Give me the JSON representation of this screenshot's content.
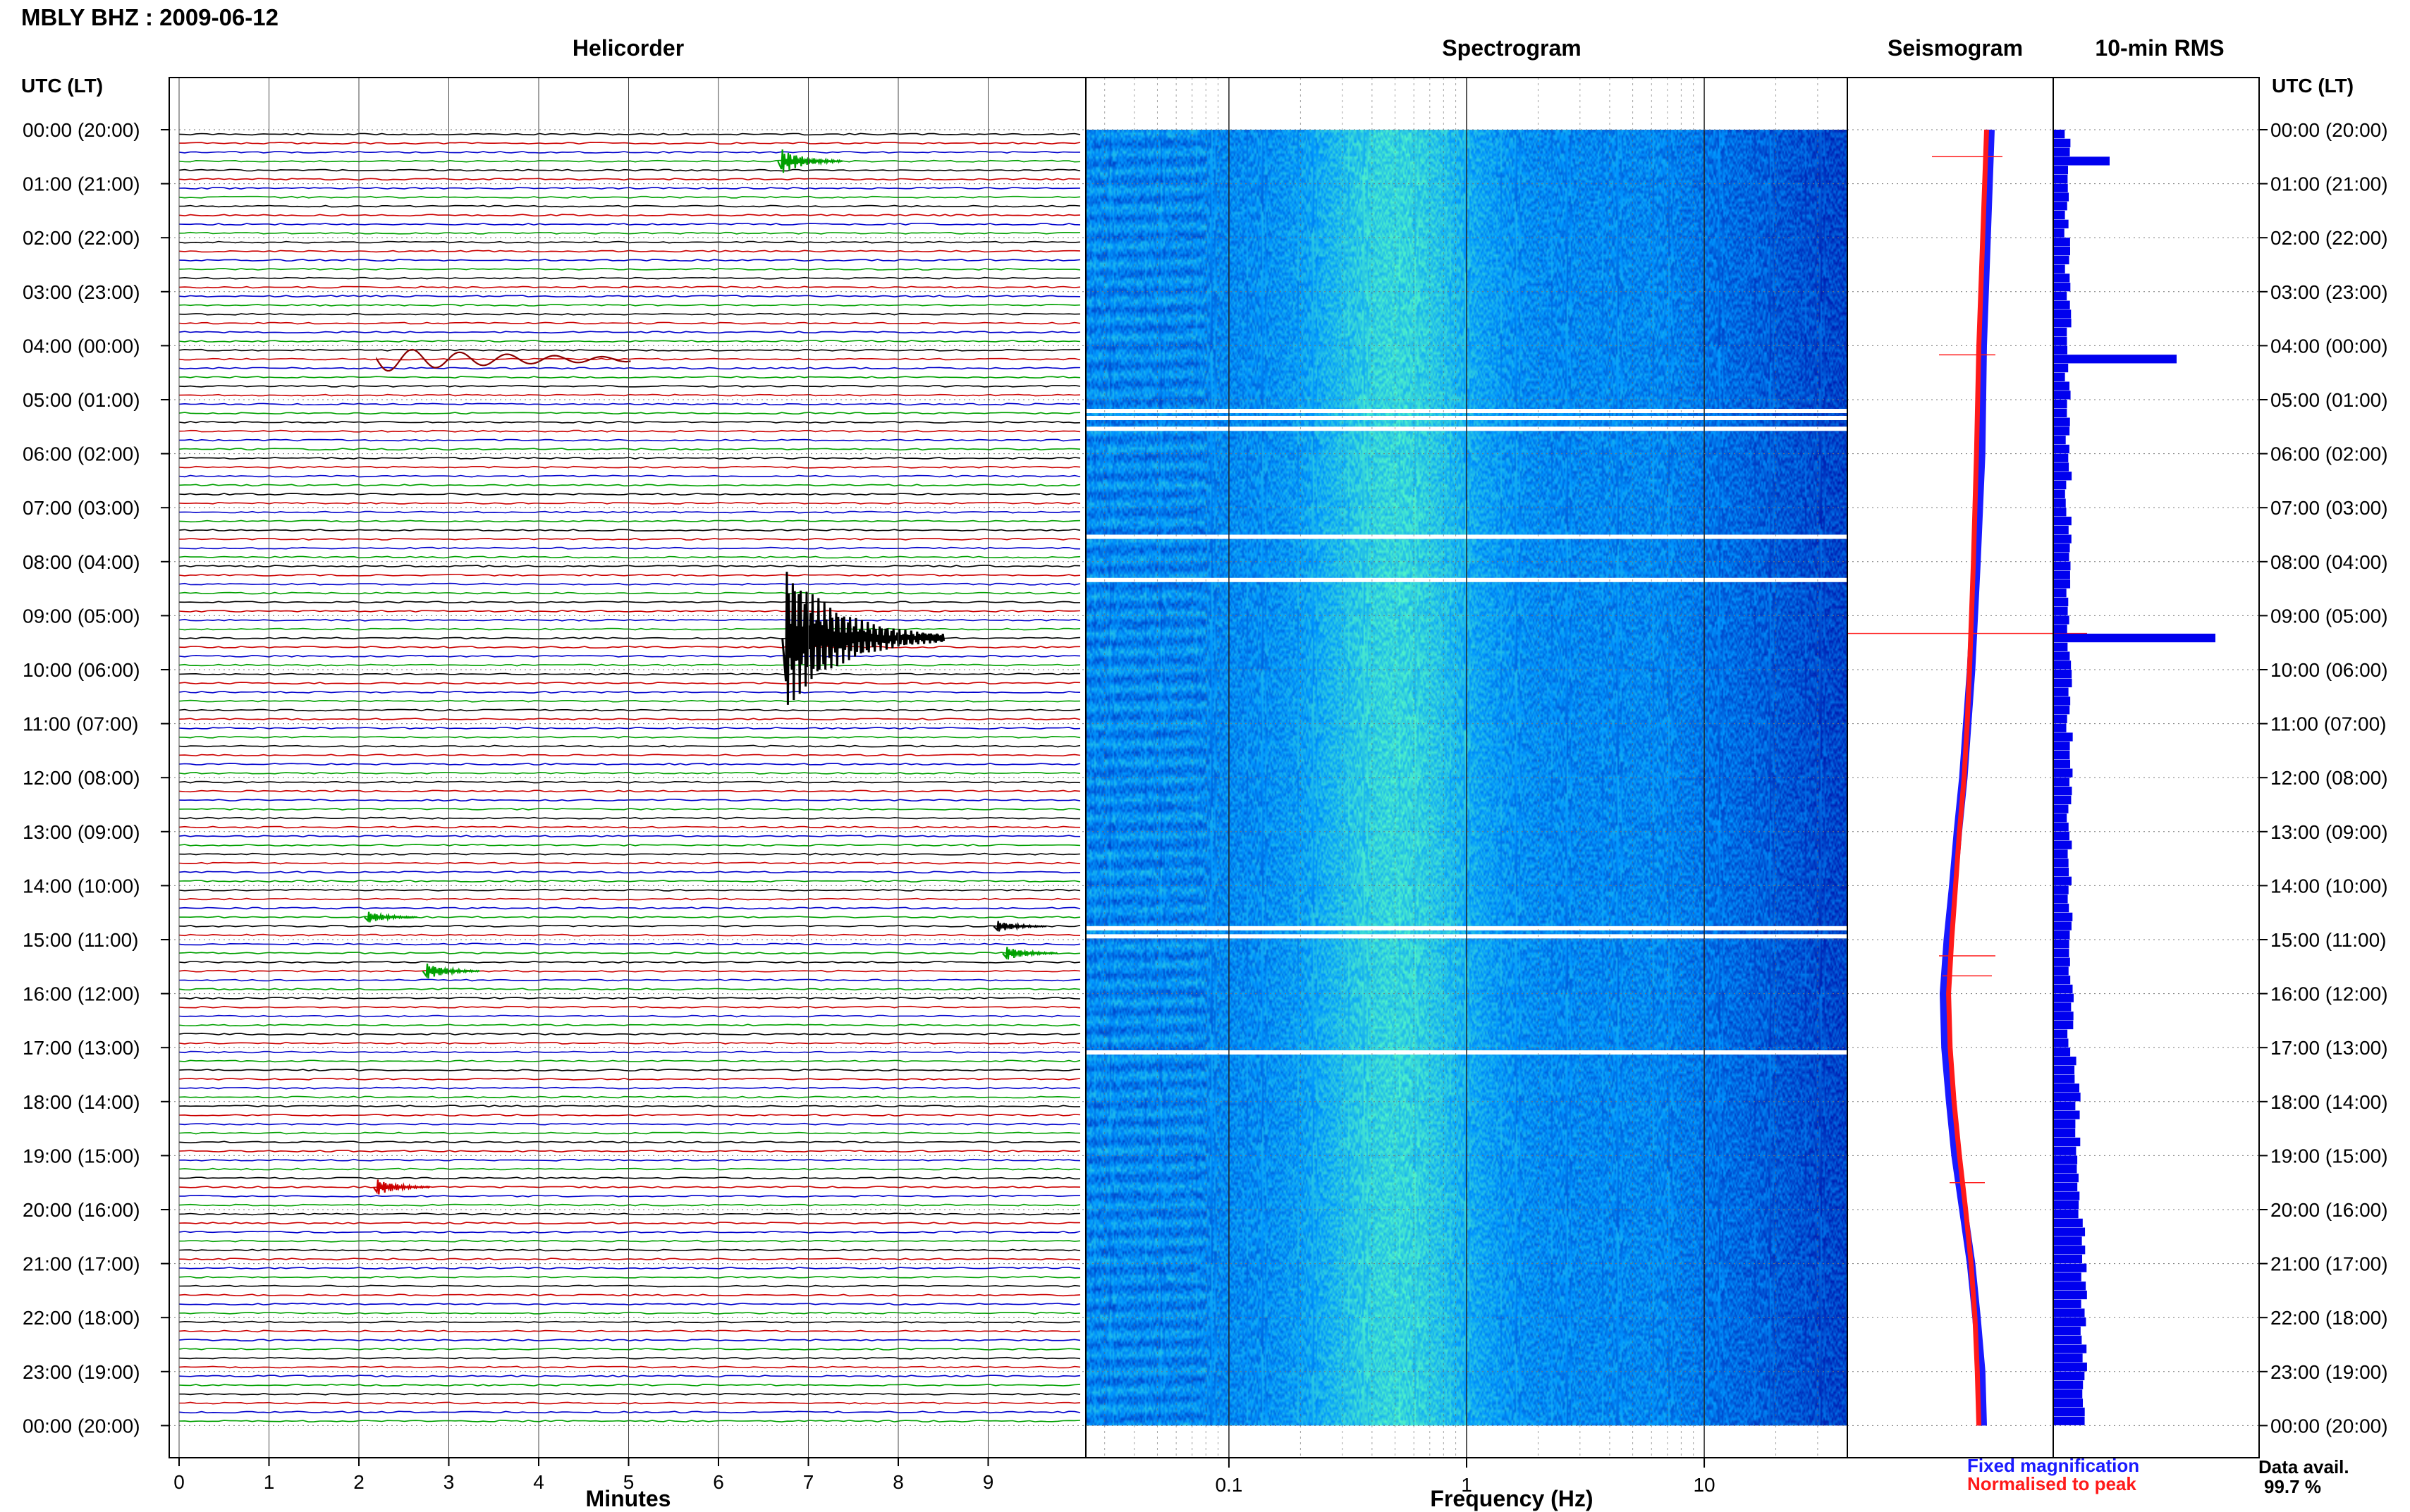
{
  "station": {
    "title": "MBLY BHZ : 2009-06-12"
  },
  "colors": {
    "trace_cycle": [
      "#000000",
      "#cc0000",
      "#0000cc",
      "#00a000"
    ],
    "event_trace_dark_red": "#880000",
    "spectrogram_low": "#0000aa",
    "spectrogram_mid": "#0099ff",
    "spectrogram_high": "#44ffcc",
    "fixed_magnification": "#1a1aff",
    "normalised_to_peak": "#ff1a1a",
    "rms_bar": "#0000ee"
  },
  "panels": {
    "helicorder": {
      "title": "Helicorder"
    },
    "spectrogram": {
      "title": "Spectrogram"
    },
    "seismogram": {
      "title": "Seismogram"
    },
    "rms": {
      "title": "10-min RMS"
    }
  },
  "legend": {
    "fixed": "Fixed magnification",
    "normalised": "Normalised to peak"
  },
  "data_avail": {
    "label": "Data avail.",
    "value": "99.7 %"
  },
  "chart_data": [
    {
      "type": "line",
      "title": "Helicorder",
      "xlabel": "Minutes",
      "ylabel": "UTC (LT)",
      "xlim": [
        0,
        10
      ],
      "x_ticks": [
        "0",
        "1",
        "2",
        "3",
        "4",
        "5",
        "6",
        "7",
        "8",
        "9"
      ],
      "y_ticks": [
        "00:00 (20:00)",
        "01:00 (21:00)",
        "02:00 (22:00)",
        "03:00 (23:00)",
        "04:00 (00:00)",
        "05:00 (01:00)",
        "06:00 (02:00)",
        "07:00 (03:00)",
        "08:00 (04:00)",
        "09:00 (05:00)",
        "10:00 (06:00)",
        "11:00 (07:00)",
        "12:00 (08:00)",
        "13:00 (09:00)",
        "14:00 (10:00)",
        "15:00 (11:00)",
        "16:00 (12:00)",
        "17:00 (13:00)",
        "18:00 (14:00)",
        "19:00 (15:00)",
        "20:00 (16:00)",
        "21:00 (17:00)",
        "22:00 (18:00)",
        "23:00 (19:00)",
        "00:00 (20:00)"
      ],
      "y_ticks_right": [
        "00:00 (20:00)",
        "01:00 (21:00)",
        "02:00 (22:00)",
        "03:00 (23:00)",
        "04:00 (00:00)",
        "05:00 (01:00)",
        "06:00 (02:00)",
        "07:00 (03:00)",
        "08:00 (04:00)",
        "09:00 (05:00)",
        "10:00 (06:00)",
        "11:00 (07:00)",
        "12:00 (08:00)",
        "13:00 (09:00)",
        "14:00 (10:00)",
        "15:00 (11:00)",
        "16:00 (12:00)",
        "17:00 (13:00)",
        "18:00 (14:00)",
        "19:00 (15:00)",
        "20:00 (16:00)",
        "21:00 (17:00)",
        "22:00 (18:00)",
        "23:00 (19:00)",
        "00:00 (20:00)"
      ],
      "rows_per_hour": 6,
      "events": [
        {
          "hour": 0.5,
          "minute": 6.7,
          "amp": 0.55,
          "color_index": 3
        },
        {
          "hour": 4.17,
          "minute": 2.2,
          "amp": 0.8,
          "color_index": 1,
          "long_period": true
        },
        {
          "hour": 9.33,
          "minute": 6.75,
          "amp": 3.0,
          "color_index": 0
        },
        {
          "hour": 14.5,
          "minute": 2.1,
          "amp": 0.25,
          "color_index": 3
        },
        {
          "hour": 14.67,
          "minute": 9.1,
          "amp": 0.25,
          "color_index": 0
        },
        {
          "hour": 15.17,
          "minute": 9.2,
          "amp": 0.3,
          "color_index": 3
        },
        {
          "hour": 15.5,
          "minute": 2.75,
          "amp": 0.35,
          "color_index": 3
        },
        {
          "hour": 19.5,
          "minute": 2.2,
          "amp": 0.35,
          "color_index": 1
        }
      ],
      "gaps": [
        {
          "hour_start": 5.0,
          "hour_end": 5.5
        },
        {
          "hour_start": 14.67,
          "hour_end": 14.83
        },
        {
          "hour_start": 17.0,
          "hour_end": 17.1
        }
      ]
    },
    {
      "type": "heatmap",
      "title": "Spectrogram",
      "xlabel": "Frequency (Hz)",
      "x_scale": "log",
      "xlim": [
        0.025,
        40
      ],
      "x_ticks": [
        {
          "value": 0.1,
          "label": "0.1"
        },
        {
          "value": 1,
          "label": "1"
        },
        {
          "value": 10,
          "label": "10"
        }
      ],
      "ylim_hours": [
        0,
        24
      ],
      "peak_frequency_hz": 0.5,
      "gaps_hours": [
        5.17,
        5.3,
        5.5,
        7.5,
        8.3,
        14.75,
        14.9,
        17.05
      ]
    },
    {
      "type": "line",
      "title": "Seismogram",
      "xlim": [
        -1,
        1
      ],
      "ylim_hours": [
        0,
        24
      ],
      "series": [
        {
          "name": "Fixed magnification",
          "hours": [
            0,
            2,
            4,
            6,
            8,
            10,
            11,
            12,
            13,
            14,
            15,
            16,
            17,
            18,
            19,
            20,
            21,
            22,
            23,
            24
          ],
          "values": [
            0.3,
            0.25,
            0.2,
            0.18,
            0.12,
            0.05,
            0.0,
            -0.05,
            -0.12,
            -0.18,
            -0.25,
            -0.3,
            -0.28,
            -0.22,
            -0.15,
            -0.05,
            0.05,
            0.12,
            0.18,
            0.2
          ]
        },
        {
          "name": "Normalised to peak",
          "hours": [
            0,
            2,
            4,
            6,
            8,
            10,
            11,
            12,
            13,
            14,
            15,
            16,
            17,
            18,
            19,
            20,
            21,
            22,
            23,
            24
          ],
          "values": [
            0.25,
            0.2,
            0.15,
            0.12,
            0.08,
            0.03,
            0.0,
            -0.04,
            -0.1,
            -0.15,
            -0.2,
            -0.24,
            -0.22,
            -0.17,
            -0.1,
            -0.02,
            0.05,
            0.1,
            0.13,
            0.15
          ]
        }
      ]
    },
    {
      "type": "bar",
      "title": "10-min RMS",
      "orientation": "horizontal",
      "ylim_hours": [
        0,
        24
      ],
      "bins_per_hour": 6,
      "base_value_start": 18,
      "base_value_end": 24,
      "spikes": [
        {
          "hour": 0.5,
          "value": 80
        },
        {
          "hour": 4.17,
          "value": 175
        },
        {
          "hour": 9.33,
          "value": 230
        }
      ]
    }
  ]
}
